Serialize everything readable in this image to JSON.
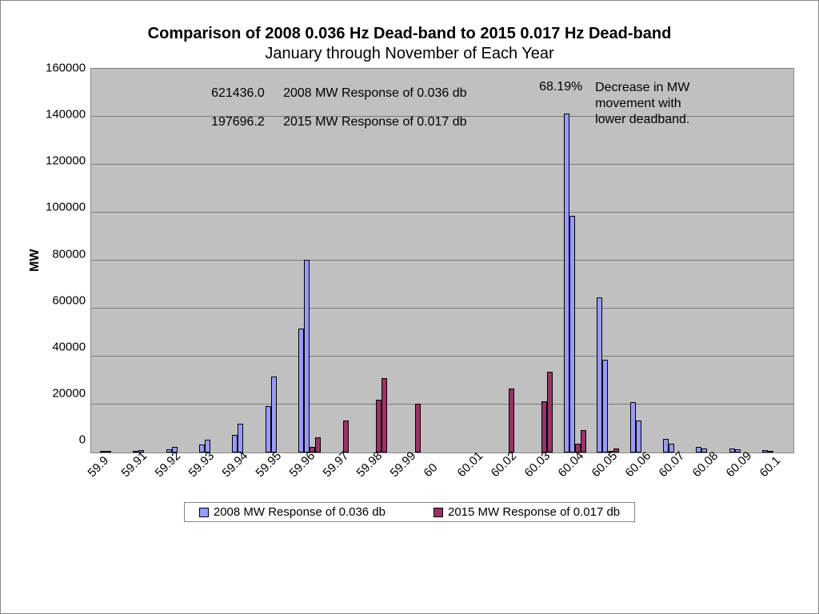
{
  "chart": {
    "type": "grouped-bar",
    "title_main": "Comparison of 2008 0.036 Hz Dead-band to 2015 0.017 Hz Dead-band",
    "title_sub": "January through November of Each Year",
    "title_fontsize": 20,
    "background_color": "#ffffff",
    "plot_background": "#c0c0c0",
    "grid_color": "#7a7a7a",
    "border_color": "#888888",
    "yaxis": {
      "label": "MW",
      "min": 0,
      "max": 160000,
      "tick_step": 20000,
      "ticks": [
        "160000",
        "140000",
        "120000",
        "100000",
        "80000",
        "60000",
        "40000",
        "20000",
        "0"
      ],
      "label_fontsize": 16,
      "tick_fontsize": 15
    },
    "xaxis": {
      "categories": [
        "59.9",
        "59.91",
        "59.92",
        "59.93",
        "59.94",
        "59.95",
        "59.96",
        "59.97",
        "59.98",
        "59.99",
        "60",
        "60.01",
        "60.02",
        "60.03",
        "60.04",
        "60.05",
        "60.06",
        "60.07",
        "60.08",
        "60.09",
        "60.1"
      ],
      "tick_rotation_deg": -45,
      "tick_fontsize": 15
    },
    "series": [
      {
        "name": "2008 MW Response of 0.036 db",
        "color": "#9999ff",
        "border": "#000000",
        "values_a": [
          650,
          700,
          1400,
          3200,
          7500,
          19400,
          51800,
          0,
          0,
          0,
          0,
          0,
          0,
          0,
          141400,
          64800,
          21000,
          5600,
          2300,
          1600,
          1100
        ],
        "values_b": [
          400,
          900,
          2200,
          5200,
          12000,
          31800,
          80500,
          0,
          0,
          0,
          0,
          0,
          0,
          0,
          98800,
          38800,
          13200,
          3600,
          1800,
          1300,
          800
        ]
      },
      {
        "name": "2015 MW Response of 0.017 db",
        "color": "#993366",
        "border": "#000000",
        "values_a": [
          0,
          0,
          0,
          0,
          0,
          0,
          2500,
          13200,
          22000,
          0,
          0,
          0,
          26600,
          21200,
          3700,
          450,
          0,
          0,
          0,
          0,
          0
        ],
        "values_b": [
          0,
          0,
          0,
          0,
          0,
          0,
          6400,
          0,
          31000,
          20400,
          0,
          0,
          0,
          33800,
          9500,
          1700,
          0,
          0,
          0,
          0,
          0
        ]
      }
    ],
    "annotations": {
      "val_2008": "621436.0",
      "label_2008": "2008 MW Response of 0.036 db",
      "val_2015": "197696.2",
      "label_2015": "2015 MW Response of 0.017 db",
      "percent": "68.19%",
      "note": "Decrease in MW movement with lower deadband."
    },
    "legend": {
      "items": [
        {
          "swatch": "s1",
          "label": "2008 MW Response of 0.036 db"
        },
        {
          "swatch": "s2",
          "label": "2015 MW Response of 0.017 db"
        }
      ],
      "fontsize": 15
    }
  }
}
